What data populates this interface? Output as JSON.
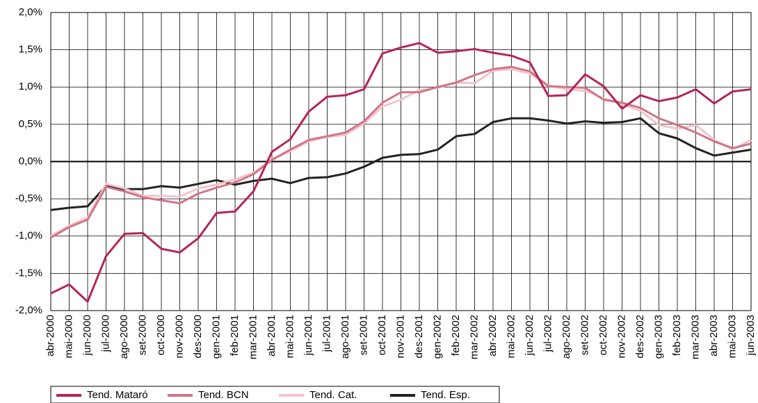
{
  "chart_data": {
    "type": "line",
    "categories": [
      "abr-2000",
      "mai-2000",
      "jun-2000",
      "jul-2000",
      "ago-2000",
      "set-2000",
      "oct-2000",
      "nov-2000",
      "des-2000",
      "gen-2001",
      "feb-2001",
      "mar-2001",
      "abr-2001",
      "mai-2001",
      "jun-2001",
      "jul-2001",
      "ago-2001",
      "set-2001",
      "oct-2001",
      "nov-2001",
      "des-2001",
      "gen-2002",
      "feb-2002",
      "mar-2002",
      "abr-2002",
      "mai-2002",
      "jun-2002",
      "jul-2002",
      "ago-2002",
      "set-2002",
      "oct-2002",
      "nov-2002",
      "des-2002",
      "gen-2003",
      "feb-2003",
      "mar-2003",
      "abr-2003",
      "mai-2003",
      "jun-2003"
    ],
    "series": [
      {
        "name": "Tend. Mataró",
        "color": "#b3245a",
        "values": [
          -1.77,
          -1.65,
          -1.88,
          -1.27,
          -0.97,
          -0.96,
          -1.17,
          -1.22,
          -1.03,
          -0.69,
          -0.67,
          -0.4,
          0.13,
          0.3,
          0.67,
          0.87,
          0.89,
          0.97,
          1.45,
          1.53,
          1.59,
          1.46,
          1.48,
          1.51,
          1.46,
          1.42,
          1.33,
          0.88,
          0.89,
          1.17,
          1.01,
          0.71,
          0.89,
          0.81,
          0.86,
          0.97,
          0.78,
          0.94,
          0.97
        ]
      },
      {
        "name": "Tend. BCN",
        "color": "#d27485",
        "values": [
          -1.02,
          -0.88,
          -0.78,
          -0.34,
          -0.4,
          -0.48,
          -0.52,
          -0.56,
          -0.43,
          -0.35,
          -0.28,
          -0.17,
          0.02,
          0.16,
          0.29,
          0.34,
          0.39,
          0.54,
          0.79,
          0.93,
          0.93,
          1.0,
          1.06,
          1.16,
          1.24,
          1.27,
          1.21,
          1.01,
          1.0,
          0.99,
          0.83,
          0.79,
          0.72,
          0.58,
          0.49,
          0.39,
          0.27,
          0.18,
          0.24
        ]
      },
      {
        "name": "Tend. Cat.",
        "color": "#f2c4cc",
        "values": [
          -1.0,
          -0.86,
          -0.75,
          -0.3,
          -0.36,
          -0.46,
          -0.46,
          -0.47,
          -0.36,
          -0.31,
          -0.24,
          -0.15,
          0.03,
          0.14,
          0.27,
          0.33,
          0.36,
          0.51,
          0.74,
          0.83,
          0.96,
          0.99,
          1.06,
          1.05,
          1.22,
          1.24,
          1.18,
          1.02,
          0.97,
          0.95,
          0.85,
          0.77,
          0.68,
          0.49,
          0.44,
          0.49,
          0.29,
          0.16,
          0.29
        ]
      },
      {
        "name": "Tend. Esp.",
        "color": "#222222",
        "values": [
          -0.65,
          -0.62,
          -0.6,
          -0.33,
          -0.37,
          -0.37,
          -0.33,
          -0.35,
          -0.3,
          -0.25,
          -0.31,
          -0.26,
          -0.23,
          -0.29,
          -0.22,
          -0.21,
          -0.16,
          -0.07,
          0.05,
          0.09,
          0.1,
          0.16,
          0.34,
          0.37,
          0.53,
          0.58,
          0.58,
          0.55,
          0.51,
          0.54,
          0.52,
          0.53,
          0.58,
          0.38,
          0.31,
          0.18,
          0.08,
          0.12,
          0.16
        ]
      }
    ],
    "ylim": [
      -2.0,
      2.0
    ],
    "yticks": [
      {
        "value": -2.0,
        "label": "-2,0%"
      },
      {
        "value": -1.5,
        "label": "-1,5%"
      },
      {
        "value": -1.0,
        "label": "-1,0%"
      },
      {
        "value": -0.5,
        "label": "-0,5%"
      },
      {
        "value": 0.0,
        "label": "0,0%"
      },
      {
        "value": 0.5,
        "label": "0,5%"
      },
      {
        "value": 1.0,
        "label": "1,0%"
      },
      {
        "value": 1.5,
        "label": "1,5%"
      },
      {
        "value": 2.0,
        "label": "2,0%"
      }
    ],
    "grid": true
  }
}
